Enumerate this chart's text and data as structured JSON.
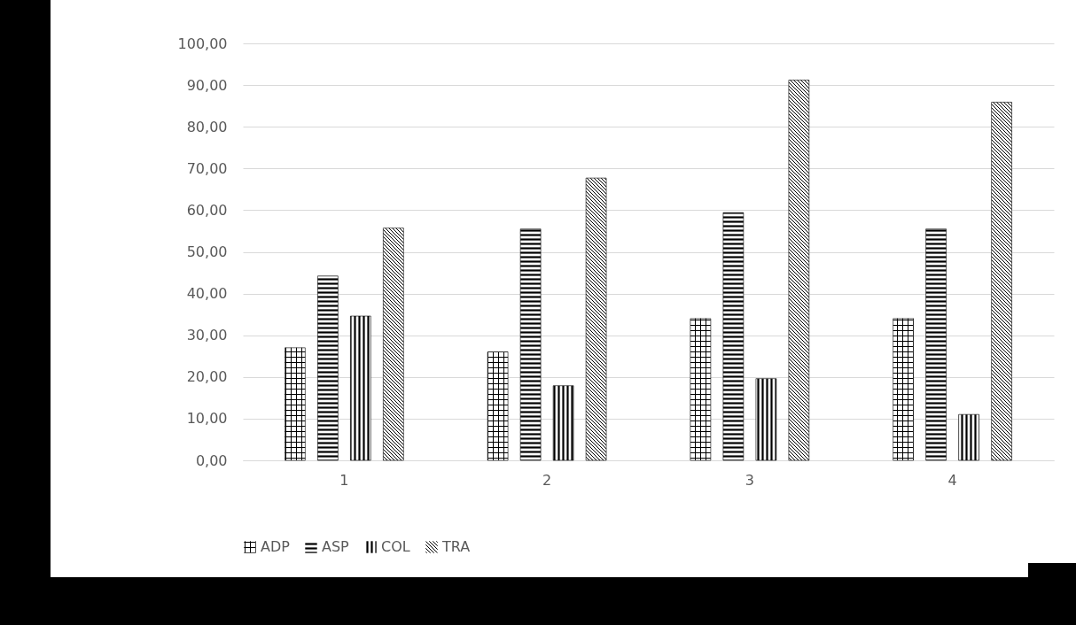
{
  "chart_data": {
    "type": "bar",
    "categories": [
      "1",
      "2",
      "3",
      "4"
    ],
    "series": [
      {
        "name": "ADP",
        "color": "#000000",
        "values": [
          27.0,
          26.0,
          34.0,
          34.0
        ]
      },
      {
        "name": "ASP",
        "color": "#000000",
        "values": [
          44.2,
          55.5,
          59.4,
          55.5
        ]
      },
      {
        "name": "COL",
        "color": "#000000",
        "values": [
          34.6,
          17.9,
          19.6,
          11.0
        ]
      },
      {
        "name": "TRA",
        "color": "#000000",
        "values": [
          55.7,
          67.7,
          91.2,
          85.9
        ]
      }
    ],
    "ylim": [
      0,
      100
    ],
    "yticks": [
      {
        "value": 0,
        "label": "0,00"
      },
      {
        "value": 10,
        "label": "10,00"
      },
      {
        "value": 20,
        "label": "20,00"
      },
      {
        "value": 30,
        "label": "30,00"
      },
      {
        "value": 40,
        "label": "40,00"
      },
      {
        "value": 50,
        "label": "50,00"
      },
      {
        "value": 60,
        "label": "60,00"
      },
      {
        "value": 70,
        "label": "70,00"
      },
      {
        "value": 80,
        "label": "80,00"
      },
      {
        "value": 90,
        "label": "90,00"
      },
      {
        "value": 100,
        "label": "100,00"
      }
    ],
    "grid": "y",
    "legend": "bottom"
  }
}
